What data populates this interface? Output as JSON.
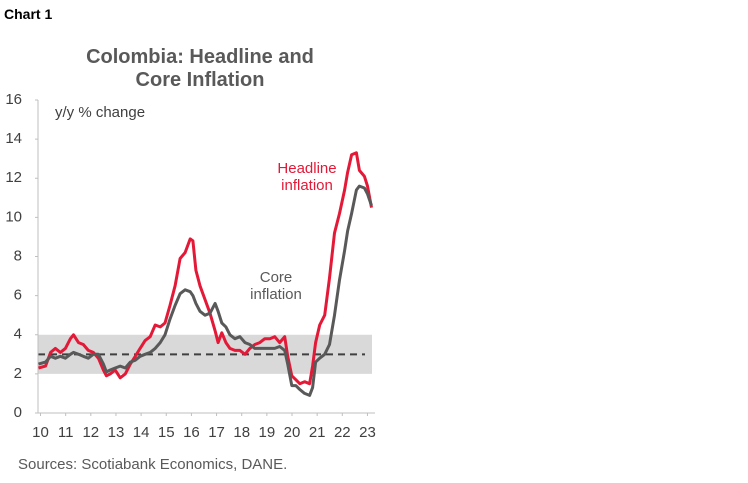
{
  "chart_data": {
    "type": "line",
    "chart_label": "Chart 1",
    "title": "Colombia: Headline and Core Inflation",
    "y_label": "y/y % change",
    "source": "Sources: Scotiabank Economics, DANE.",
    "x": [
      9.92,
      10.2,
      10.4,
      10.59,
      10.79,
      10.99,
      11.19,
      11.31,
      11.51,
      11.7,
      11.9,
      12.1,
      12.3,
      12.5,
      12.62,
      12.77,
      12.97,
      13.17,
      13.37,
      13.57,
      13.77,
      13.96,
      14.16,
      14.36,
      14.56,
      14.76,
      14.95,
      15.15,
      15.35,
      15.55,
      15.75,
      15.95,
      16.06,
      16.18,
      16.34,
      16.54,
      16.74,
      16.94,
      17.06,
      17.21,
      17.37,
      17.53,
      17.73,
      17.93,
      18.13,
      18.32,
      18.52,
      18.72,
      18.92,
      19.12,
      19.31,
      19.51,
      19.71,
      19.83,
      19.99,
      20.15,
      20.31,
      20.5,
      20.7,
      20.82,
      20.94,
      21.1,
      21.3,
      21.49,
      21.69,
      21.89,
      22.09,
      22.21,
      22.37,
      22.56,
      22.68,
      22.88,
      23.0,
      23.16
    ],
    "series": [
      {
        "name": "Headline inflation",
        "color": "#e31937",
        "values": [
          2.3,
          2.4,
          3.1,
          3.3,
          3.1,
          3.3,
          3.8,
          4.0,
          3.6,
          3.5,
          3.2,
          3.1,
          2.8,
          2.2,
          1.9,
          2.0,
          2.2,
          1.8,
          2.0,
          2.5,
          2.9,
          3.3,
          3.7,
          3.9,
          4.5,
          4.4,
          4.6,
          5.5,
          6.5,
          7.9,
          8.2,
          8.9,
          8.8,
          7.3,
          6.5,
          5.8,
          5.1,
          4.2,
          3.6,
          4.1,
          3.6,
          3.3,
          3.2,
          3.2,
          3.0,
          3.3,
          3.5,
          3.6,
          3.8,
          3.8,
          3.9,
          3.6,
          3.9,
          2.9,
          1.9,
          1.7,
          1.5,
          1.6,
          1.5,
          2.4,
          3.6,
          4.5,
          5.0,
          6.9,
          9.2,
          10.2,
          11.4,
          12.3,
          13.2,
          13.3,
          12.4,
          12.1,
          11.6,
          10.5
        ]
      },
      {
        "name": "Core inflation",
        "color": "#595959",
        "values": [
          2.5,
          2.6,
          2.9,
          2.8,
          2.9,
          2.8,
          3.0,
          3.1,
          3.0,
          2.9,
          2.8,
          3.0,
          3.0,
          2.5,
          2.1,
          2.2,
          2.3,
          2.4,
          2.3,
          2.6,
          2.7,
          2.9,
          3.0,
          3.1,
          3.3,
          3.6,
          4.0,
          4.8,
          5.5,
          6.1,
          6.3,
          6.2,
          6.0,
          5.6,
          5.2,
          5.0,
          5.1,
          5.6,
          5.2,
          4.6,
          4.4,
          4.0,
          3.8,
          3.9,
          3.6,
          3.5,
          3.3,
          3.3,
          3.3,
          3.3,
          3.3,
          3.4,
          3.2,
          2.5,
          1.4,
          1.4,
          1.2,
          1.0,
          0.9,
          1.3,
          2.6,
          2.8,
          3.0,
          3.5,
          5.0,
          6.8,
          8.3,
          9.3,
          10.2,
          11.4,
          11.6,
          11.5,
          11.2,
          10.6
        ]
      }
    ],
    "target_band": [
      2,
      4
    ],
    "band_color": "#d9d9d9",
    "target": 3,
    "target_color": "#404040",
    "xlim": [
      9.9,
      23.3
    ],
    "xticks": [
      10,
      11,
      12,
      13,
      14,
      15,
      16,
      17,
      18,
      19,
      20,
      21,
      22,
      23
    ],
    "ylim": [
      0,
      16
    ],
    "yticks": [
      0,
      2,
      4,
      6,
      8,
      10,
      12,
      14,
      16
    ]
  }
}
